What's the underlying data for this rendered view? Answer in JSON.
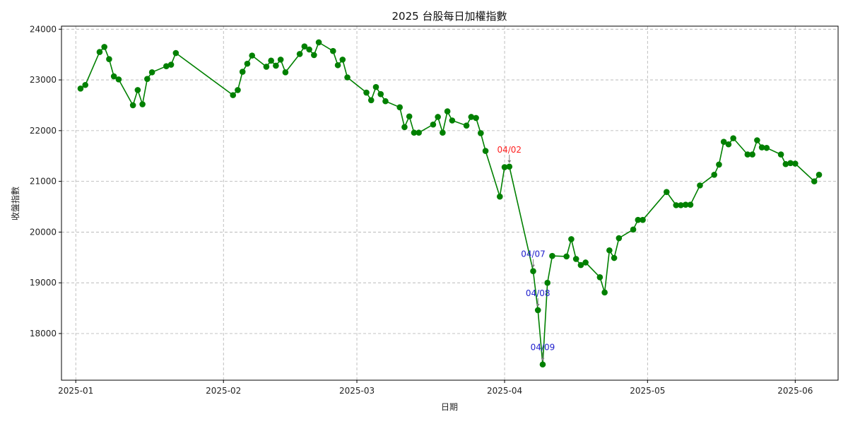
{
  "chart_data": {
    "type": "line",
    "title": "2025 台股每日加權指數",
    "xlabel": "日期",
    "ylabel": "收盤指數",
    "x_ticks": [
      "2025-01",
      "2025-02",
      "2025-03",
      "2025-04",
      "2025-05",
      "2025-06"
    ],
    "y_ticks": [
      18000,
      19000,
      20000,
      21000,
      22000,
      23000,
      24000
    ],
    "xlim": [
      "2024-12-29",
      "2025-06-10"
    ],
    "ylim": [
      17080,
      24060
    ],
    "grid": true,
    "series": [
      {
        "color": "#008000",
        "points": [
          [
            "2025-01-02",
            22830
          ],
          [
            "2025-01-03",
            22900
          ],
          [
            "2025-01-06",
            23550
          ],
          [
            "2025-01-07",
            23650
          ],
          [
            "2025-01-08",
            23410
          ],
          [
            "2025-01-09",
            23070
          ],
          [
            "2025-01-10",
            23010
          ],
          [
            "2025-01-13",
            22500
          ],
          [
            "2025-01-14",
            22800
          ],
          [
            "2025-01-15",
            22520
          ],
          [
            "2025-01-16",
            23020
          ],
          [
            "2025-01-17",
            23150
          ],
          [
            "2025-01-20",
            23270
          ],
          [
            "2025-01-21",
            23300
          ],
          [
            "2025-01-22",
            23530
          ],
          [
            "2025-02-03",
            22700
          ],
          [
            "2025-02-04",
            22800
          ],
          [
            "2025-02-05",
            23160
          ],
          [
            "2025-02-06",
            23320
          ],
          [
            "2025-02-07",
            23480
          ],
          [
            "2025-02-10",
            23260
          ],
          [
            "2025-02-11",
            23380
          ],
          [
            "2025-02-12",
            23280
          ],
          [
            "2025-02-13",
            23400
          ],
          [
            "2025-02-14",
            23150
          ],
          [
            "2025-02-17",
            23510
          ],
          [
            "2025-02-18",
            23660
          ],
          [
            "2025-02-19",
            23600
          ],
          [
            "2025-02-20",
            23490
          ],
          [
            "2025-02-21",
            23740
          ],
          [
            "2025-02-24",
            23570
          ],
          [
            "2025-02-25",
            23290
          ],
          [
            "2025-02-26",
            23400
          ],
          [
            "2025-02-27",
            23050
          ],
          [
            "2025-03-03",
            22750
          ],
          [
            "2025-03-04",
            22600
          ],
          [
            "2025-03-05",
            22860
          ],
          [
            "2025-03-06",
            22720
          ],
          [
            "2025-03-07",
            22580
          ],
          [
            "2025-03-10",
            22460
          ],
          [
            "2025-03-11",
            22070
          ],
          [
            "2025-03-12",
            22280
          ],
          [
            "2025-03-13",
            21960
          ],
          [
            "2025-03-14",
            21960
          ],
          [
            "2025-03-17",
            22120
          ],
          [
            "2025-03-18",
            22270
          ],
          [
            "2025-03-19",
            21960
          ],
          [
            "2025-03-20",
            22380
          ],
          [
            "2025-03-21",
            22200
          ],
          [
            "2025-03-24",
            22100
          ],
          [
            "2025-03-25",
            22270
          ],
          [
            "2025-03-26",
            22250
          ],
          [
            "2025-03-27",
            21950
          ],
          [
            "2025-03-28",
            21600
          ],
          [
            "2025-03-31",
            20700
          ],
          [
            "2025-04-01",
            21280
          ],
          [
            "2025-04-02",
            21290
          ],
          [
            "2025-04-07",
            19230
          ],
          [
            "2025-04-08",
            18460
          ],
          [
            "2025-04-09",
            17390
          ],
          [
            "2025-04-10",
            19000
          ],
          [
            "2025-04-11",
            19530
          ],
          [
            "2025-04-14",
            19520
          ],
          [
            "2025-04-15",
            19860
          ],
          [
            "2025-04-16",
            19470
          ],
          [
            "2025-04-17",
            19350
          ],
          [
            "2025-04-18",
            19400
          ],
          [
            "2025-04-21",
            19110
          ],
          [
            "2025-04-22",
            18810
          ],
          [
            "2025-04-23",
            19640
          ],
          [
            "2025-04-24",
            19490
          ],
          [
            "2025-04-25",
            19880
          ],
          [
            "2025-04-28",
            20050
          ],
          [
            "2025-04-29",
            20240
          ],
          [
            "2025-04-30",
            20240
          ],
          [
            "2025-05-05",
            20790
          ],
          [
            "2025-05-07",
            20530
          ],
          [
            "2025-05-08",
            20530
          ],
          [
            "2025-05-09",
            20540
          ],
          [
            "2025-05-10",
            20540
          ],
          [
            "2025-05-12",
            20920
          ],
          [
            "2025-05-15",
            21130
          ],
          [
            "2025-05-16",
            21330
          ],
          [
            "2025-05-17",
            21780
          ],
          [
            "2025-05-18",
            21730
          ],
          [
            "2025-05-19",
            21850
          ],
          [
            "2025-05-22",
            21530
          ],
          [
            "2025-05-23",
            21530
          ],
          [
            "2025-05-24",
            21810
          ],
          [
            "2025-05-25",
            21670
          ],
          [
            "2025-05-26",
            21660
          ],
          [
            "2025-05-29",
            21530
          ],
          [
            "2025-05-30",
            21340
          ],
          [
            "2025-05-31",
            21360
          ],
          [
            "2025-06-01",
            21350
          ],
          [
            "2025-06-05",
            21000
          ],
          [
            "2025-06-06",
            21130
          ]
        ]
      }
    ],
    "annotations": [
      {
        "date": "2025-04-02",
        "value": 21290,
        "text": "04/02",
        "color": "#ff2020",
        "placement": "above"
      },
      {
        "date": "2025-04-07",
        "value": 19230,
        "text": "04/07",
        "color": "#2020cc",
        "placement": "above"
      },
      {
        "date": "2025-04-08",
        "value": 18460,
        "text": "04/08",
        "color": "#2020cc",
        "placement": "above"
      },
      {
        "date": "2025-04-09",
        "value": 17390,
        "text": "04/09",
        "color": "#2020cc",
        "placement": "above"
      }
    ]
  }
}
